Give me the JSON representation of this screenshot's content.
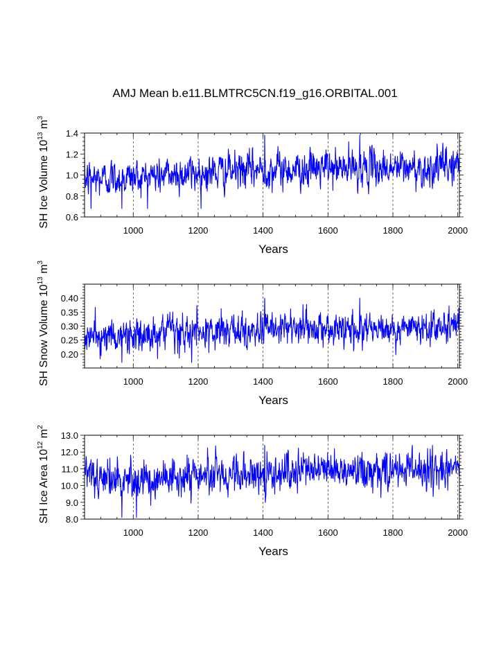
{
  "title": "AMJ Mean b.e11.BLMTRC5CN.f19_g16.ORBITAL.001",
  "colors": {
    "series": "#0000ff",
    "axis": "#000000",
    "grid": "#000000"
  },
  "chart_data": [
    {
      "type": "line",
      "xlabel": "Years",
      "ylabel": {
        "text": "SH Ice Volume 10",
        "exponent": "13",
        "unit": " m",
        "unit_exponent": "3"
      },
      "xlim": [
        850,
        2005
      ],
      "ylim": [
        0.6,
        1.4
      ],
      "x_ticks": [
        1000,
        1200,
        1400,
        1600,
        1800,
        2000
      ],
      "y_ticks": [
        0.6,
        0.8,
        1.0,
        1.2,
        1.4
      ],
      "y_tick_labels": [
        "0.6",
        "0.8",
        "1.0",
        "1.2",
        "1.4"
      ],
      "x_grid": "dashed vertical at major x ticks",
      "series": [
        {
          "name": "SH Ice Volume",
          "x_start": 850,
          "x_step": 1,
          "annual_mean": 1.0,
          "annual_std": 0.085,
          "anchors": {
            "x": [
              850,
              1000,
              1200,
              1400,
              1600,
              1800,
              1900,
              2005
            ],
            "y": [
              0.96,
              0.98,
              1.02,
              1.05,
              1.06,
              1.07,
              1.06,
              1.1
            ]
          },
          "extremes": {
            "min": 0.68,
            "max": 1.38,
            "x_of_max": [
              1405,
              1698
            ],
            "x_of_min": [
              870,
              965
            ]
          }
        }
      ]
    },
    {
      "type": "line",
      "xlabel": "Years",
      "ylabel": {
        "text": "SH Snow Volume 10",
        "exponent": "13",
        "unit": " m",
        "unit_exponent": "3"
      },
      "xlim": [
        850,
        2005
      ],
      "ylim": [
        0.15,
        0.45
      ],
      "x_ticks": [
        1000,
        1200,
        1400,
        1600,
        1800,
        2000
      ],
      "y_ticks": [
        0.2,
        0.25,
        0.3,
        0.35,
        0.4
      ],
      "y_tick_labels": [
        "0.20",
        "0.25",
        "0.30",
        "0.35",
        "0.40"
      ],
      "x_grid": "dashed vertical at major x ticks",
      "series": [
        {
          "name": "SH Snow Volume",
          "x_start": 850,
          "x_step": 1,
          "annual_mean": 0.28,
          "annual_std": 0.03,
          "anchors": {
            "x": [
              850,
              1000,
              1200,
              1400,
              1600,
              1800,
              1900,
              2005
            ],
            "y": [
              0.26,
              0.265,
              0.275,
              0.285,
              0.29,
              0.29,
              0.29,
              0.3
            ]
          },
          "extremes": {
            "min": 0.17,
            "max": 0.4,
            "x_of_max": [
              1405,
              1698
            ],
            "x_of_min": [
              965,
              1180
            ]
          }
        }
      ]
    },
    {
      "type": "line",
      "xlabel": "Years",
      "ylabel": {
        "text": "SH Ice Area 10",
        "exponent": "12",
        "unit": " m",
        "unit_exponent": "2"
      },
      "xlim": [
        850,
        2005
      ],
      "ylim": [
        8.0,
        13.0
      ],
      "x_ticks": [
        1000,
        1200,
        1400,
        1600,
        1800,
        2000
      ],
      "y_ticks": [
        8.0,
        9.0,
        10.0,
        11.0,
        12.0,
        13.0
      ],
      "y_tick_labels": [
        "8.0",
        "9.0",
        "10.0",
        "11.0",
        "12.0",
        "13.0"
      ],
      "x_grid": "dashed vertical at major x ticks",
      "series": [
        {
          "name": "SH Ice Area",
          "x_start": 850,
          "x_step": 1,
          "annual_mean": 10.6,
          "annual_std": 0.55,
          "anchors": {
            "x": [
              850,
              1000,
              1200,
              1400,
              1600,
              1800,
              1900,
              2005
            ],
            "y": [
              10.4,
              10.4,
              10.6,
              10.8,
              10.8,
              10.8,
              10.9,
              11.0
            ]
          },
          "extremes": {
            "min": 8.1,
            "max": 12.4,
            "x_of_max": [
              1405,
              1860
            ],
            "x_of_min": [
              965,
              1010
            ]
          }
        }
      ]
    }
  ]
}
